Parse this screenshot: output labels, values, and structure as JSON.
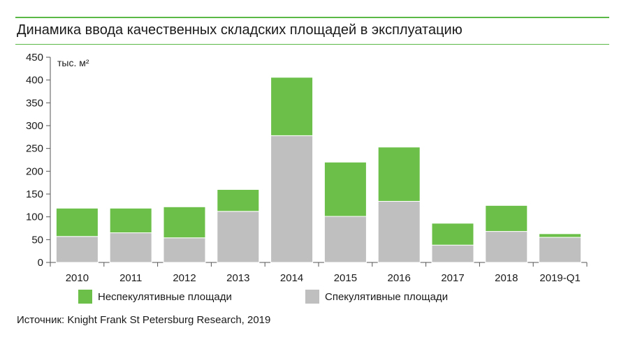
{
  "title": "Динамика ввода качественных складских площадей в эксплуатацию",
  "source": "Источник: Knight Frank St Petersburg Research, 2019",
  "colors": {
    "accent": "#5ab946",
    "speculative": "#bfbfbf",
    "non_speculative": "#6cc04a"
  },
  "chart_data": {
    "type": "bar",
    "stacked": true,
    "unit": "тыс. м²",
    "categories": [
      "2010",
      "2011",
      "2012",
      "2013",
      "2014",
      "2015",
      "2016",
      "2017",
      "2018",
      "2019-Q1"
    ],
    "series": [
      {
        "name": "Спекулятивные площади",
        "color": "#bfbfbf",
        "values": [
          57,
          65,
          54,
          112,
          278,
          101,
          134,
          38,
          68,
          55
        ]
      },
      {
        "name": "Неспекулятивные площади",
        "color": "#6cc04a",
        "values": [
          62,
          54,
          68,
          48,
          128,
          119,
          119,
          48,
          57,
          8
        ]
      }
    ],
    "ylim": [
      0,
      450
    ],
    "yticks": [
      0,
      50,
      100,
      150,
      200,
      250,
      300,
      350,
      400,
      450
    ],
    "legend": {
      "position": "bottom",
      "order": [
        "Неспекулятивные площади",
        "Спекулятивные площади"
      ]
    },
    "grid": false
  }
}
